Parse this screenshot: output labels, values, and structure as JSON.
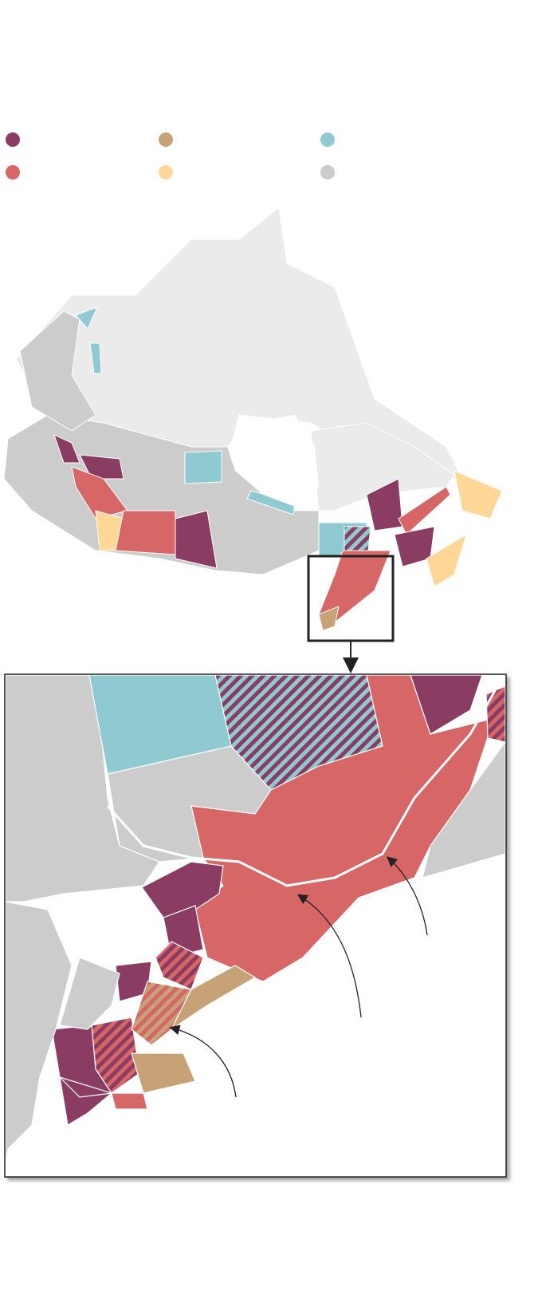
{
  "legend": {
    "items": [
      {
        "color": "#8b3c62"
      },
      {
        "color": "#c7a277"
      },
      {
        "color": "#8fc9d2"
      },
      {
        "color": "#d66766"
      },
      {
        "color": "#ffd796"
      },
      {
        "color": "#cccccc"
      }
    ]
  },
  "map": {
    "colors": {
      "land_light": "#ebebeb",
      "land": "#cccccc",
      "border": "#ffffff",
      "frame": "#222222"
    },
    "inset_pattern": [
      "hatched-purple-red",
      "hatched-blue-purple",
      "hatched-orange-tan"
    ]
  }
}
